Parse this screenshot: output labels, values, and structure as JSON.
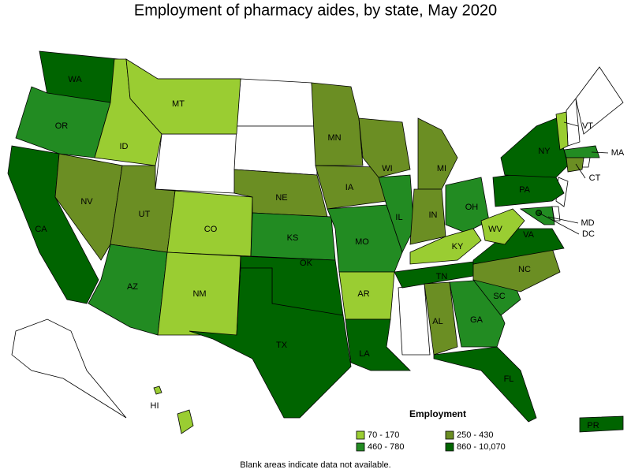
{
  "title": "Employment of pharmacy aides, by state, May 2020",
  "states": [
    {
      "label": "WA",
      "color": "#006400"
    },
    {
      "label": "OR",
      "color": "#228b22"
    },
    {
      "label": "CA",
      "color": "#006400"
    },
    {
      "label": "NV",
      "color": "#6b8e23"
    },
    {
      "label": "ID",
      "color": "#9acd32"
    },
    {
      "label": "MT",
      "color": "#9acd32"
    },
    {
      "label": "UT",
      "color": "#6b8e23"
    },
    {
      "label": "CO",
      "color": "#9acd32"
    },
    {
      "label": "AZ",
      "color": "#228b22"
    },
    {
      "label": "NM",
      "color": "#9acd32"
    },
    {
      "label": "NE",
      "color": "#6b8e23"
    },
    {
      "label": "KS",
      "color": "#228b22"
    },
    {
      "label": "OK",
      "color": "#006400"
    },
    {
      "label": "TX",
      "color": "#006400"
    },
    {
      "label": "MN",
      "color": "#6b8e23"
    },
    {
      "label": "IA",
      "color": "#6b8e23"
    },
    {
      "label": "MO",
      "color": "#228b22"
    },
    {
      "label": "AR",
      "color": "#9acd32"
    },
    {
      "label": "LA",
      "color": "#006400"
    },
    {
      "label": "WI",
      "color": "#6b8e23"
    },
    {
      "label": "IL",
      "color": "#228b22"
    },
    {
      "label": "MI",
      "color": "#6b8e23"
    },
    {
      "label": "IN",
      "color": "#6b8e23"
    },
    {
      "label": "OH",
      "color": "#228b22"
    },
    {
      "label": "KY",
      "color": "#9acd32"
    },
    {
      "label": "TN",
      "color": "#006400"
    },
    {
      "label": "AL",
      "color": "#6b8e23"
    },
    {
      "label": "GA",
      "color": "#228b22"
    },
    {
      "label": "FL",
      "color": "#006400"
    },
    {
      "label": "SC",
      "color": "#228b22"
    },
    {
      "label": "NC",
      "color": "#6b8e23"
    },
    {
      "label": "VA",
      "color": "#006400"
    },
    {
      "label": "WV",
      "color": "#9acd32"
    },
    {
      "label": "PA",
      "color": "#006400"
    },
    {
      "label": "NY",
      "color": "#006400"
    },
    {
      "label": "VT",
      "color": "#9acd32"
    },
    {
      "label": "MA",
      "color": "#228b22"
    },
    {
      "label": "CT",
      "color": "#6b8e23"
    },
    {
      "label": "MD",
      "color": "#228b22"
    },
    {
      "label": "DC",
      "color": "#006400"
    },
    {
      "label": "HI",
      "color": "#9acd32"
    },
    {
      "label": "PR",
      "color": "#006400"
    }
  ],
  "legend": {
    "title": "Employment",
    "items": [
      {
        "label": "70 - 170",
        "color": "#9acd32"
      },
      {
        "label": "250 - 430",
        "color": "#6b8e23"
      },
      {
        "label": "460 - 780",
        "color": "#228b22"
      },
      {
        "label": "860 - 10,070",
        "color": "#006400"
      }
    ]
  },
  "footnote": "Blank areas indicate data not available."
}
